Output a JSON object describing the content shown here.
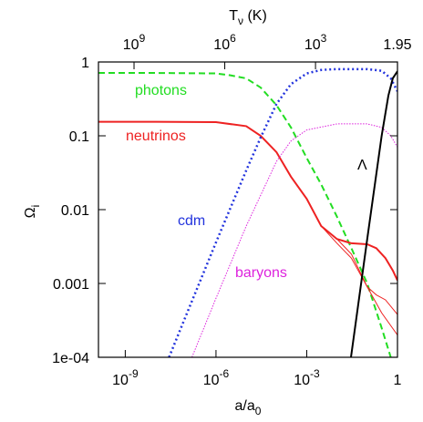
{
  "chart_data": {
    "type": "line",
    "xlabel": {
      "text": "a/a",
      "sub": "0"
    },
    "ylabel": {
      "text": "Ω",
      "sub": "i"
    },
    "x2label": {
      "text": "T",
      "sub": "ν",
      "after": " (K)"
    },
    "xscale": "log",
    "yscale": "log",
    "x2scale": "log",
    "xlim": [
      1.3e-10,
      1
    ],
    "x2lim": [
      15000000000.0,
      1.95
    ],
    "ylim": [
      0.0001,
      1
    ],
    "xticks": [
      {
        "value": 1e-09,
        "label": "10",
        "exponent": "-9"
      },
      {
        "value": 1e-06,
        "label": "10",
        "exponent": "-6"
      },
      {
        "value": 0.001,
        "label": "10",
        "exponent": "-3"
      },
      1
    ],
    "x2ticks": [
      {
        "value": 1000000000.0,
        "label": "10",
        "exponent": "9"
      },
      {
        "value": 1000000.0,
        "label": "10",
        "exponent": "6"
      },
      {
        "value": 1000,
        "label": "10",
        "exponent": "3"
      },
      1.95
    ],
    "yticks": [
      {
        "value": 0.0001,
        "label": "1e-04"
      },
      0.001,
      0.01,
      0.1,
      1
    ],
    "grid": false,
    "series": [
      {
        "name": "photons",
        "color": "#22dd22",
        "style": "dashed",
        "x": [
          1.3e-10,
          1e-08,
          1e-06,
          3e-06,
          1e-05,
          3e-05,
          0.0001,
          0.0003,
          0.001,
          0.003,
          0.01,
          0.03,
          0.1,
          0.3,
          0.6
        ],
        "values": [
          0.71,
          0.71,
          0.7,
          0.66,
          0.6,
          0.45,
          0.26,
          0.13,
          0.05,
          0.022,
          0.008,
          0.003,
          0.001,
          0.00025,
          0.0001
        ]
      },
      {
        "name": "neutrinos",
        "color": "#ee2222",
        "style": "solid",
        "x": [
          1.3e-10,
          1e-08,
          1e-06,
          1e-05,
          3e-05,
          0.0001,
          0.0003,
          0.001,
          0.003,
          0.01,
          0.03,
          0.1,
          0.2,
          0.4,
          0.7,
          1
        ],
        "values": [
          0.155,
          0.155,
          0.153,
          0.135,
          0.1,
          0.06,
          0.028,
          0.014,
          0.006,
          0.004,
          0.0035,
          0.0034,
          0.003,
          0.0022,
          0.0015,
          0.0011
        ]
      },
      {
        "color": "#ee2222",
        "style": "thin",
        "x": [
          0.001,
          0.003,
          0.01,
          0.03,
          0.1,
          0.3,
          1
        ],
        "values": [
          0.014,
          0.006,
          0.0035,
          0.0022,
          0.0009,
          0.0004,
          0.0002
        ]
      },
      {
        "color": "#ee2222",
        "style": "thin",
        "x": [
          0.01,
          0.03,
          0.1,
          0.2,
          0.4,
          1
        ],
        "values": [
          0.004,
          0.0025,
          0.0009,
          0.0007,
          0.0006,
          0.00038
        ]
      },
      {
        "name": "cdm",
        "color": "#2233dd",
        "style": "dotted",
        "x": [
          2.8e-08,
          1e-07,
          1e-06,
          1e-05,
          3e-05,
          0.0001,
          0.0003,
          0.001,
          0.003,
          0.01,
          0.1,
          0.3,
          0.6,
          1
        ],
        "values": [
          0.0001,
          0.00036,
          0.0036,
          0.034,
          0.095,
          0.27,
          0.5,
          0.7,
          0.78,
          0.8,
          0.8,
          0.76,
          0.6,
          0.4
        ]
      },
      {
        "name": "baryons",
        "color": "#dd22dd",
        "style": "thin-dotted",
        "x": [
          1.6e-07,
          1e-06,
          1e-05,
          0.0001,
          0.0003,
          0.001,
          0.01,
          0.1,
          0.3,
          0.6,
          1
        ],
        "values": [
          0.0001,
          0.00063,
          0.006,
          0.045,
          0.085,
          0.12,
          0.145,
          0.145,
          0.13,
          0.1,
          0.07
        ]
      },
      {
        "name": "Λ",
        "color": "#000000",
        "style": "solid",
        "x": [
          0.029,
          0.1,
          0.3,
          0.5,
          0.7,
          1
        ],
        "values": [
          0.0001,
          0.004,
          0.1,
          0.35,
          0.6,
          0.75
        ]
      }
    ]
  }
}
